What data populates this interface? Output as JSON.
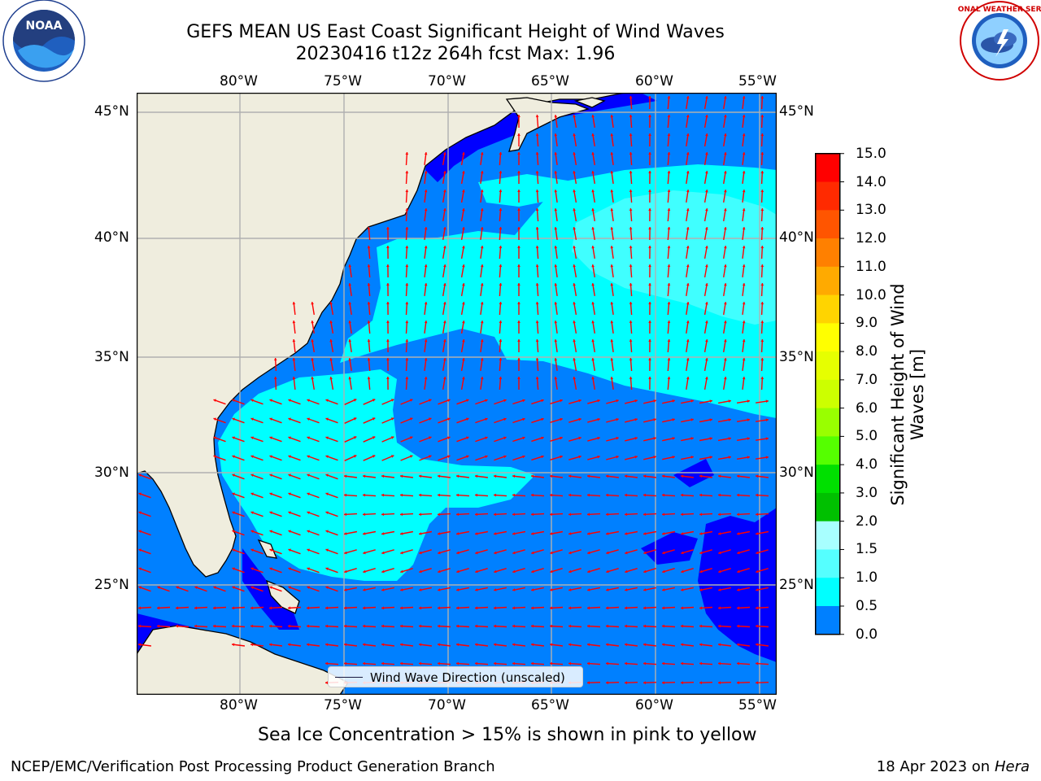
{
  "title": {
    "line1": "GEFS MEAN US East Coast Significant Height of Wind Waves",
    "line2": "20230416 t12z 264h fcst   Max: 1.96"
  },
  "map": {
    "lon_labels": [
      "80°W",
      "75°W",
      "70°W",
      "65°W",
      "60°W",
      "55°W"
    ],
    "lat_labels": [
      "45°N",
      "40°N",
      "35°N",
      "30°N",
      "25°N"
    ],
    "extent": {
      "lon": [
        -85,
        -54.2
      ],
      "lat": [
        20.5,
        46
      ]
    },
    "colors": {
      "land": "#efedde",
      "coast": "#000000",
      "grid": "#b0b0b0",
      "wave_0_0_5": "#0000ff",
      "wave_0_5_1": "#0080ff",
      "wave_1_1_5": "#00ffff",
      "wave_1_5_2": "#40ffff",
      "arrow": "#ff0000"
    }
  },
  "legend": {
    "label": "Wind Wave Direction (unscaled)"
  },
  "colorbar": {
    "title": "Significant Height of Wind Waves [m]",
    "ticks": [
      "15.0",
      "14.0",
      "13.0",
      "12.0",
      "11.0",
      "10.0",
      "9.0",
      "8.0",
      "7.0",
      "6.0",
      "5.0",
      "4.0",
      "3.0",
      "2.0",
      "1.5",
      "1.0",
      "0.5",
      "0.0"
    ],
    "colors": [
      "#ff0000",
      "#ff2a00",
      "#ff5500",
      "#ff8000",
      "#ffaa00",
      "#ffd400",
      "#ffff00",
      "#e6ff00",
      "#ccff00",
      "#99ff00",
      "#55ff00",
      "#00e000",
      "#00c000",
      "#55ff88",
      "#a8ffff",
      "#55ffff",
      "#00ffff",
      "#0080ff",
      "#0000ff"
    ]
  },
  "caption": "Sea Ice Concentration > 15% is shown in pink to yellow",
  "footer": {
    "left": "NCEP/EMC/Verification Post Processing Product Generation Branch",
    "date": "18 Apr 2023 on",
    "machine": "Hera"
  },
  "logos": {
    "noaa": "NOAA",
    "noaa_ring": "NATIONAL OCEANIC AND ATMOSPHERIC ADMINISTRATION · U.S. DEPARTMENT OF COMMERCE",
    "nws_ring": "NATIONAL WEATHER SERVICE"
  }
}
